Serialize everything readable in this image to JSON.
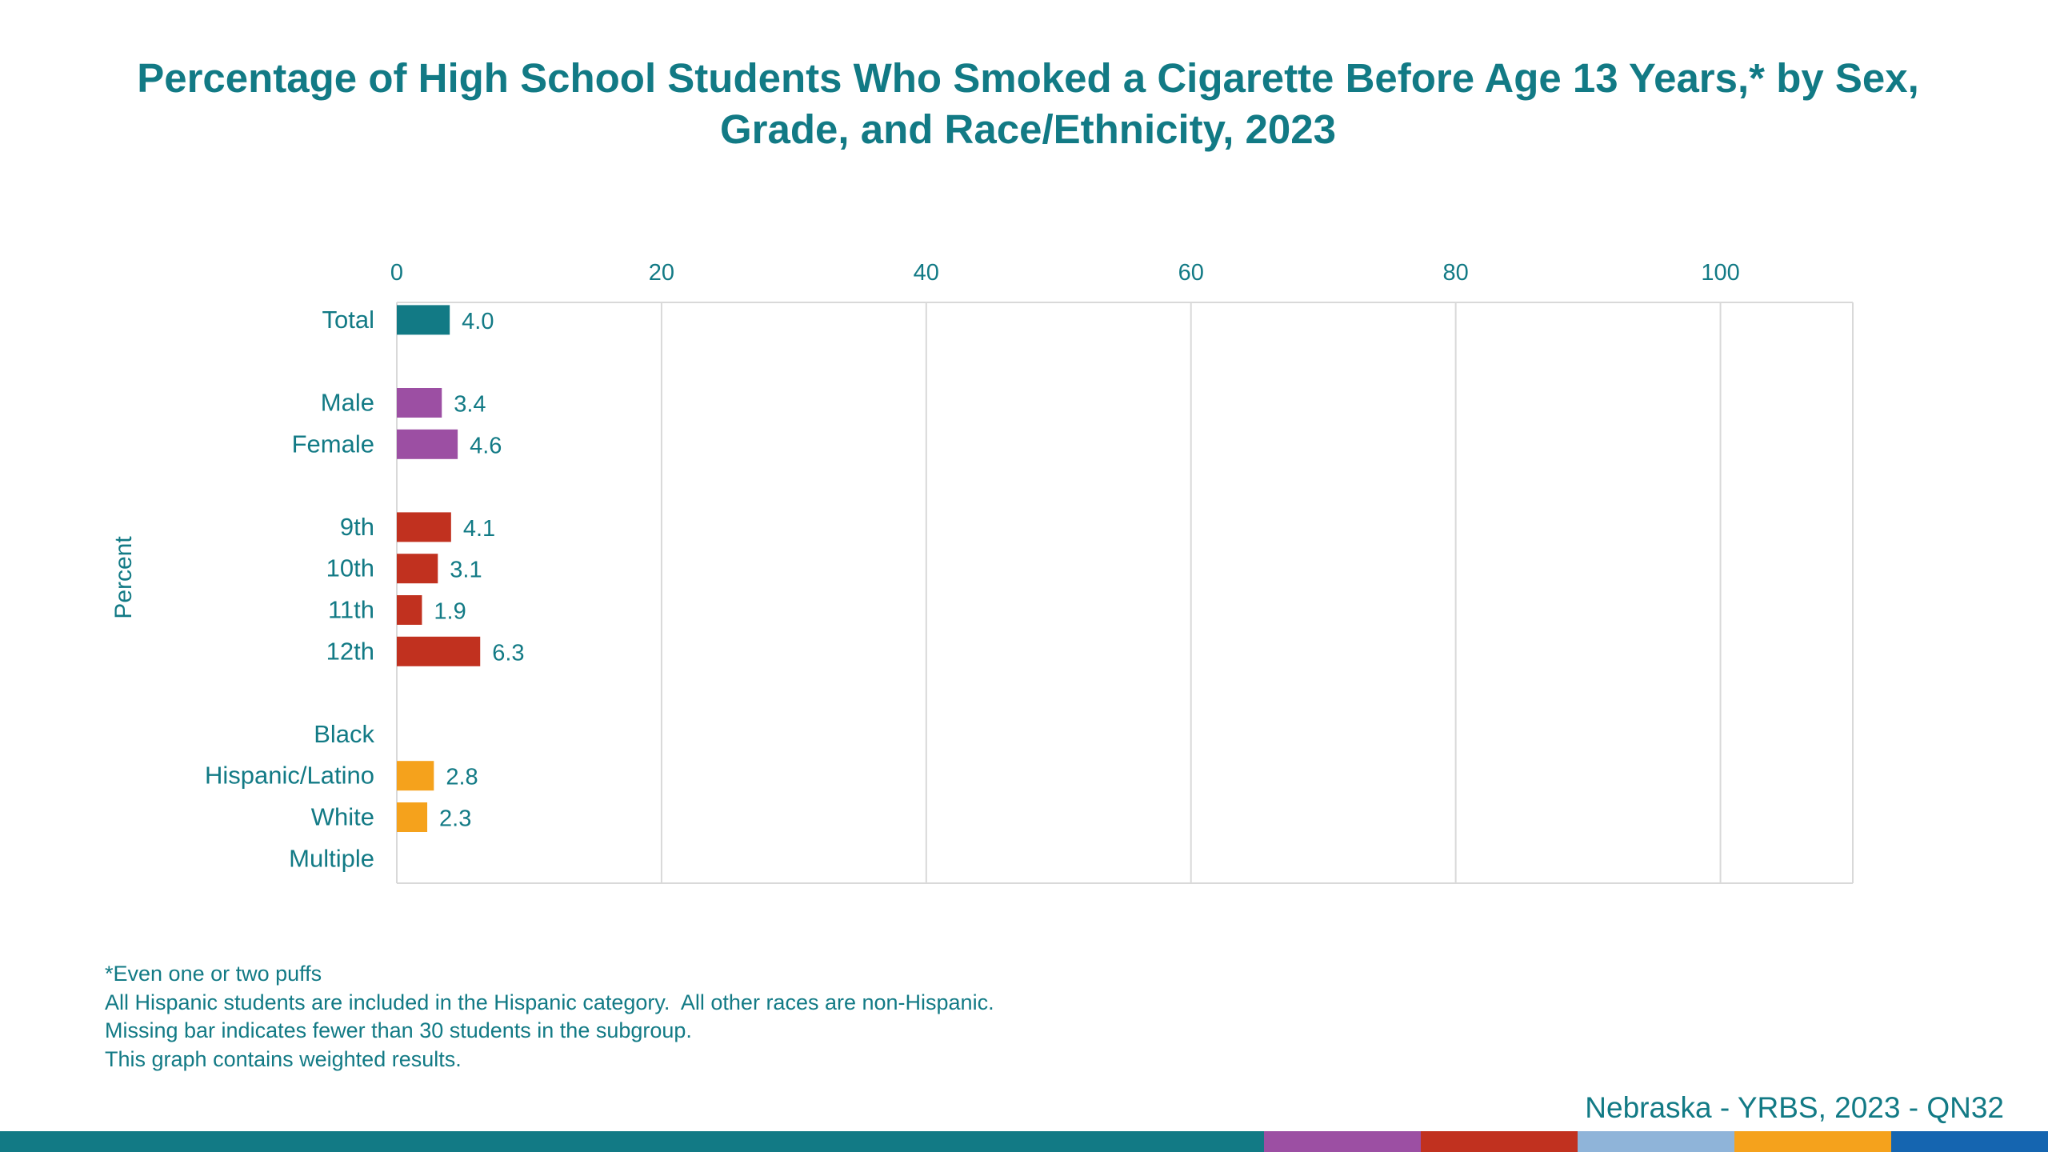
{
  "chart_data": {
    "type": "bar",
    "orientation": "horizontal",
    "title": "Percentage of High School Students Who Smoked a Cigarette Before Age 13 Years,* by Sex, Grade, and Race/Ethnicity, 2023",
    "xlabel": "",
    "ylabel": "Percent",
    "xlim": [
      0,
      110
    ],
    "xticks": [
      0,
      20,
      40,
      60,
      80,
      100
    ],
    "grid": true,
    "groups": [
      {
        "color": "#127a85",
        "items": [
          {
            "label": "Total",
            "value": 4.0,
            "value_label": "4.0"
          }
        ]
      },
      {
        "color": "#9c4fa3",
        "items": [
          {
            "label": "Male",
            "value": 3.4,
            "value_label": "3.4"
          },
          {
            "label": "Female",
            "value": 4.6,
            "value_label": "4.6"
          }
        ]
      },
      {
        "color": "#c1311f",
        "items": [
          {
            "label": "9th",
            "value": 4.1,
            "value_label": "4.1"
          },
          {
            "label": "10th",
            "value": 3.1,
            "value_label": "3.1"
          },
          {
            "label": "11th",
            "value": 1.9,
            "value_label": "1.9"
          },
          {
            "label": "12th",
            "value": 6.3,
            "value_label": "6.3"
          }
        ]
      },
      {
        "color": "#f5a21c",
        "items": [
          {
            "label": "Black",
            "value": null,
            "value_label": ""
          },
          {
            "label": "Hispanic/Latino",
            "value": 2.8,
            "value_label": "2.8"
          },
          {
            "label": "White",
            "value": 2.3,
            "value_label": "2.3"
          },
          {
            "label": "Multiple",
            "value": null,
            "value_label": ""
          }
        ]
      }
    ]
  },
  "footnotes": [
    "*Even one or two puffs",
    "All Hispanic students are included in the Hispanic category.  All other races are non-Hispanic.",
    "Missing bar indicates fewer than 30 students in the subgroup.",
    "This graph contains weighted results."
  ],
  "source": "Nebraska - YRBS, 2023 - QN32",
  "colors": {
    "text": "#127a85",
    "grid": "#d9d9d9",
    "footer_stripe": [
      "#127a85",
      "#9c4fa3",
      "#c1311f",
      "#8fb4d9",
      "#f5a21c",
      "#1565b0"
    ]
  }
}
